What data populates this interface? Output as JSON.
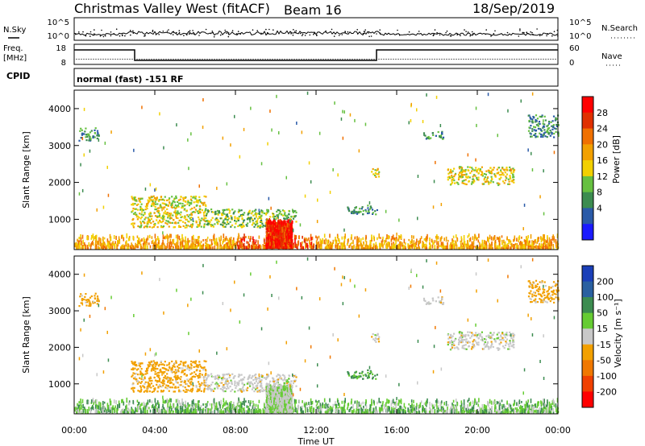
{
  "header": {
    "station": "Christmas Valley West (fitACF)",
    "beam": "Beam 16",
    "date": "18/Sep/2019"
  },
  "mini_panels": {
    "nsky_label": "N.Sky",
    "nsearch_label": "N.Search",
    "nsky_ticks": [
      "10^5",
      "10^0"
    ],
    "nsearch_ticks": [
      "10^5",
      "10^0"
    ],
    "freq_label_1": "Freq.",
    "freq_label_2": "[MHz]",
    "freq_ticks": [
      "18",
      "8"
    ],
    "nave_label": "Nave",
    "nave_ticks": [
      "60",
      "0"
    ],
    "cpid_label": "CPID",
    "cpid_text": "normal (fast) -151 RF",
    "freq_steps": [
      {
        "start": "00:00",
        "end": "03:00",
        "level": "high"
      },
      {
        "start": "03:00",
        "end": "15:00",
        "level": "low"
      },
      {
        "start": "15:00",
        "end": "24:00",
        "level": "high"
      }
    ]
  },
  "power_panel": {
    "ylabel": "Slant Range [km]",
    "yticks": [
      "1000",
      "2000",
      "3000",
      "4000"
    ],
    "colorbar_label": "Power [dB]",
    "colorbar_ticks": [
      "4",
      "8",
      "12",
      "16",
      "20",
      "24",
      "28"
    ],
    "colors": [
      "#1a1aff",
      "#2a5aa8",
      "#3c8c50",
      "#66c040",
      "#f2d000",
      "#f2a000",
      "#f07000",
      "#e03000",
      "#ff0000"
    ]
  },
  "velocity_panel": {
    "ylabel": "Slant Range [km]",
    "yticks": [
      "1000",
      "2000",
      "3000",
      "4000"
    ],
    "colorbar_label": "Velocity [m s⁻¹]",
    "colorbar_ticks": [
      "200",
      "100",
      "50",
      "15",
      "-15",
      "-50",
      "-100",
      "-200"
    ],
    "colors": [
      "#1a3fb8",
      "#2a60a0",
      "#3c8c50",
      "#66cc33",
      "#c8c8c8",
      "#f2a000",
      "#f07800",
      "#f04000",
      "#ff0000"
    ]
  },
  "x_axis": {
    "xlabel": "Time UT",
    "ticks": [
      "00:00",
      "04:00",
      "08:00",
      "12:00",
      "16:00",
      "20:00",
      "00:00"
    ]
  },
  "chart_data": {
    "type": "heatmap",
    "title": "Christmas Valley West (fitACF)",
    "xlabel": "Time UT",
    "ylabel": "Slant Range [km]",
    "xlim_hours": [
      0,
      24
    ],
    "ylim_km": [
      180,
      4500
    ],
    "echo_regions": [
      {
        "name": "near-range ground scatter",
        "t_start": 0.0,
        "t_end": 24.0,
        "r_start": 180,
        "r_end": 500,
        "power": 20,
        "velocity": 25
      },
      {
        "name": "early evening echoes",
        "t_start": 0.2,
        "t_end": 1.2,
        "r_start": 3100,
        "r_end": 3450,
        "power": 8,
        "velocity": -30
      },
      {
        "name": "main F-region patch",
        "t_start": 2.8,
        "t_end": 6.5,
        "r_start": 750,
        "r_end": 1600,
        "power": 16,
        "velocity": -30
      },
      {
        "name": "mid range patch",
        "t_start": 6.5,
        "t_end": 11.0,
        "r_start": 750,
        "r_end": 1250,
        "power": 12,
        "velocity": 0
      },
      {
        "name": "noon patch",
        "t_start": 9.5,
        "t_end": 10.8,
        "r_start": 200,
        "r_end": 900,
        "power": 24,
        "velocity": 10
      },
      {
        "name": "afternoon echoes",
        "t_start": 13.5,
        "t_end": 15.0,
        "r_start": 1100,
        "r_end": 1350,
        "power": 8,
        "velocity": 40
      },
      {
        "name": "late afternoon echoes",
        "t_start": 14.7,
        "t_end": 15.1,
        "r_start": 2100,
        "r_end": 2350,
        "power": 16,
        "velocity": 0
      },
      {
        "name": "dusk echoes",
        "t_start": 17.3,
        "t_end": 18.3,
        "r_start": 3150,
        "r_end": 3350,
        "power": 8,
        "velocity": 0
      },
      {
        "name": "evening band",
        "t_start": 18.5,
        "t_end": 21.8,
        "r_start": 1900,
        "r_end": 2400,
        "power": 16,
        "velocity": 0
      },
      {
        "name": "late evening echoes",
        "t_start": 22.5,
        "t_end": 24.0,
        "r_start": 3200,
        "r_end": 3800,
        "power": 8,
        "velocity": -30
      }
    ]
  }
}
